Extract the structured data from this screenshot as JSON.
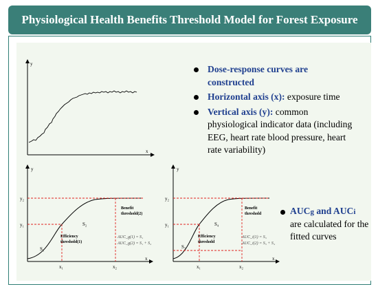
{
  "header": {
    "title": "Physiological Health Benefits Threshold Model for Forest Exposure"
  },
  "bullets": [
    {
      "bold": "Dose-response curves are constructed",
      "rest": ""
    },
    {
      "bold": "Horizontal axis (x):",
      "rest": " exposure time"
    },
    {
      "bold": "Vertical axis (y):",
      "rest": " common physiological indicator data (including EEG, heart rate blood pressure, heart rate variability)"
    }
  ],
  "note": {
    "bold_part1": "AUC",
    "sub1": "g",
    "bold_and": " and AUC",
    "sub2": "i",
    "rest": " are calculated for the fitted curves"
  },
  "chart_top": {
    "xlabel": "x",
    "ylabel": "y"
  },
  "chart_left": {
    "xlabel": "x",
    "ylabel": "y",
    "y_ticks": [
      "y₂",
      "y₁"
    ],
    "x_ticks": [
      "x₁",
      "x₂"
    ],
    "region_labels": [
      "S₁",
      "S₂"
    ],
    "efficiency_label": "Efficiency threshold(1)",
    "benefit_label": "Benefit threshold(2)",
    "auc_lines": [
      "AUC_g(1) = S₁",
      "AUC_g(2) = S₁ + S₂"
    ]
  },
  "chart_right": {
    "xlabel": "x",
    "ylabel": "y",
    "y_ticks": [
      "y₂",
      "y₁"
    ],
    "x_ticks": [
      "x₁",
      "x₂"
    ],
    "region_labels": [
      "S₃",
      "S₄"
    ],
    "efficiency_label": "Efficiency threshold",
    "benefit_label": "Benefit threshold",
    "auc_lines": [
      "AUC_i(1) = S₃",
      "AUC_i(2) = S₃ + S₄"
    ]
  }
}
